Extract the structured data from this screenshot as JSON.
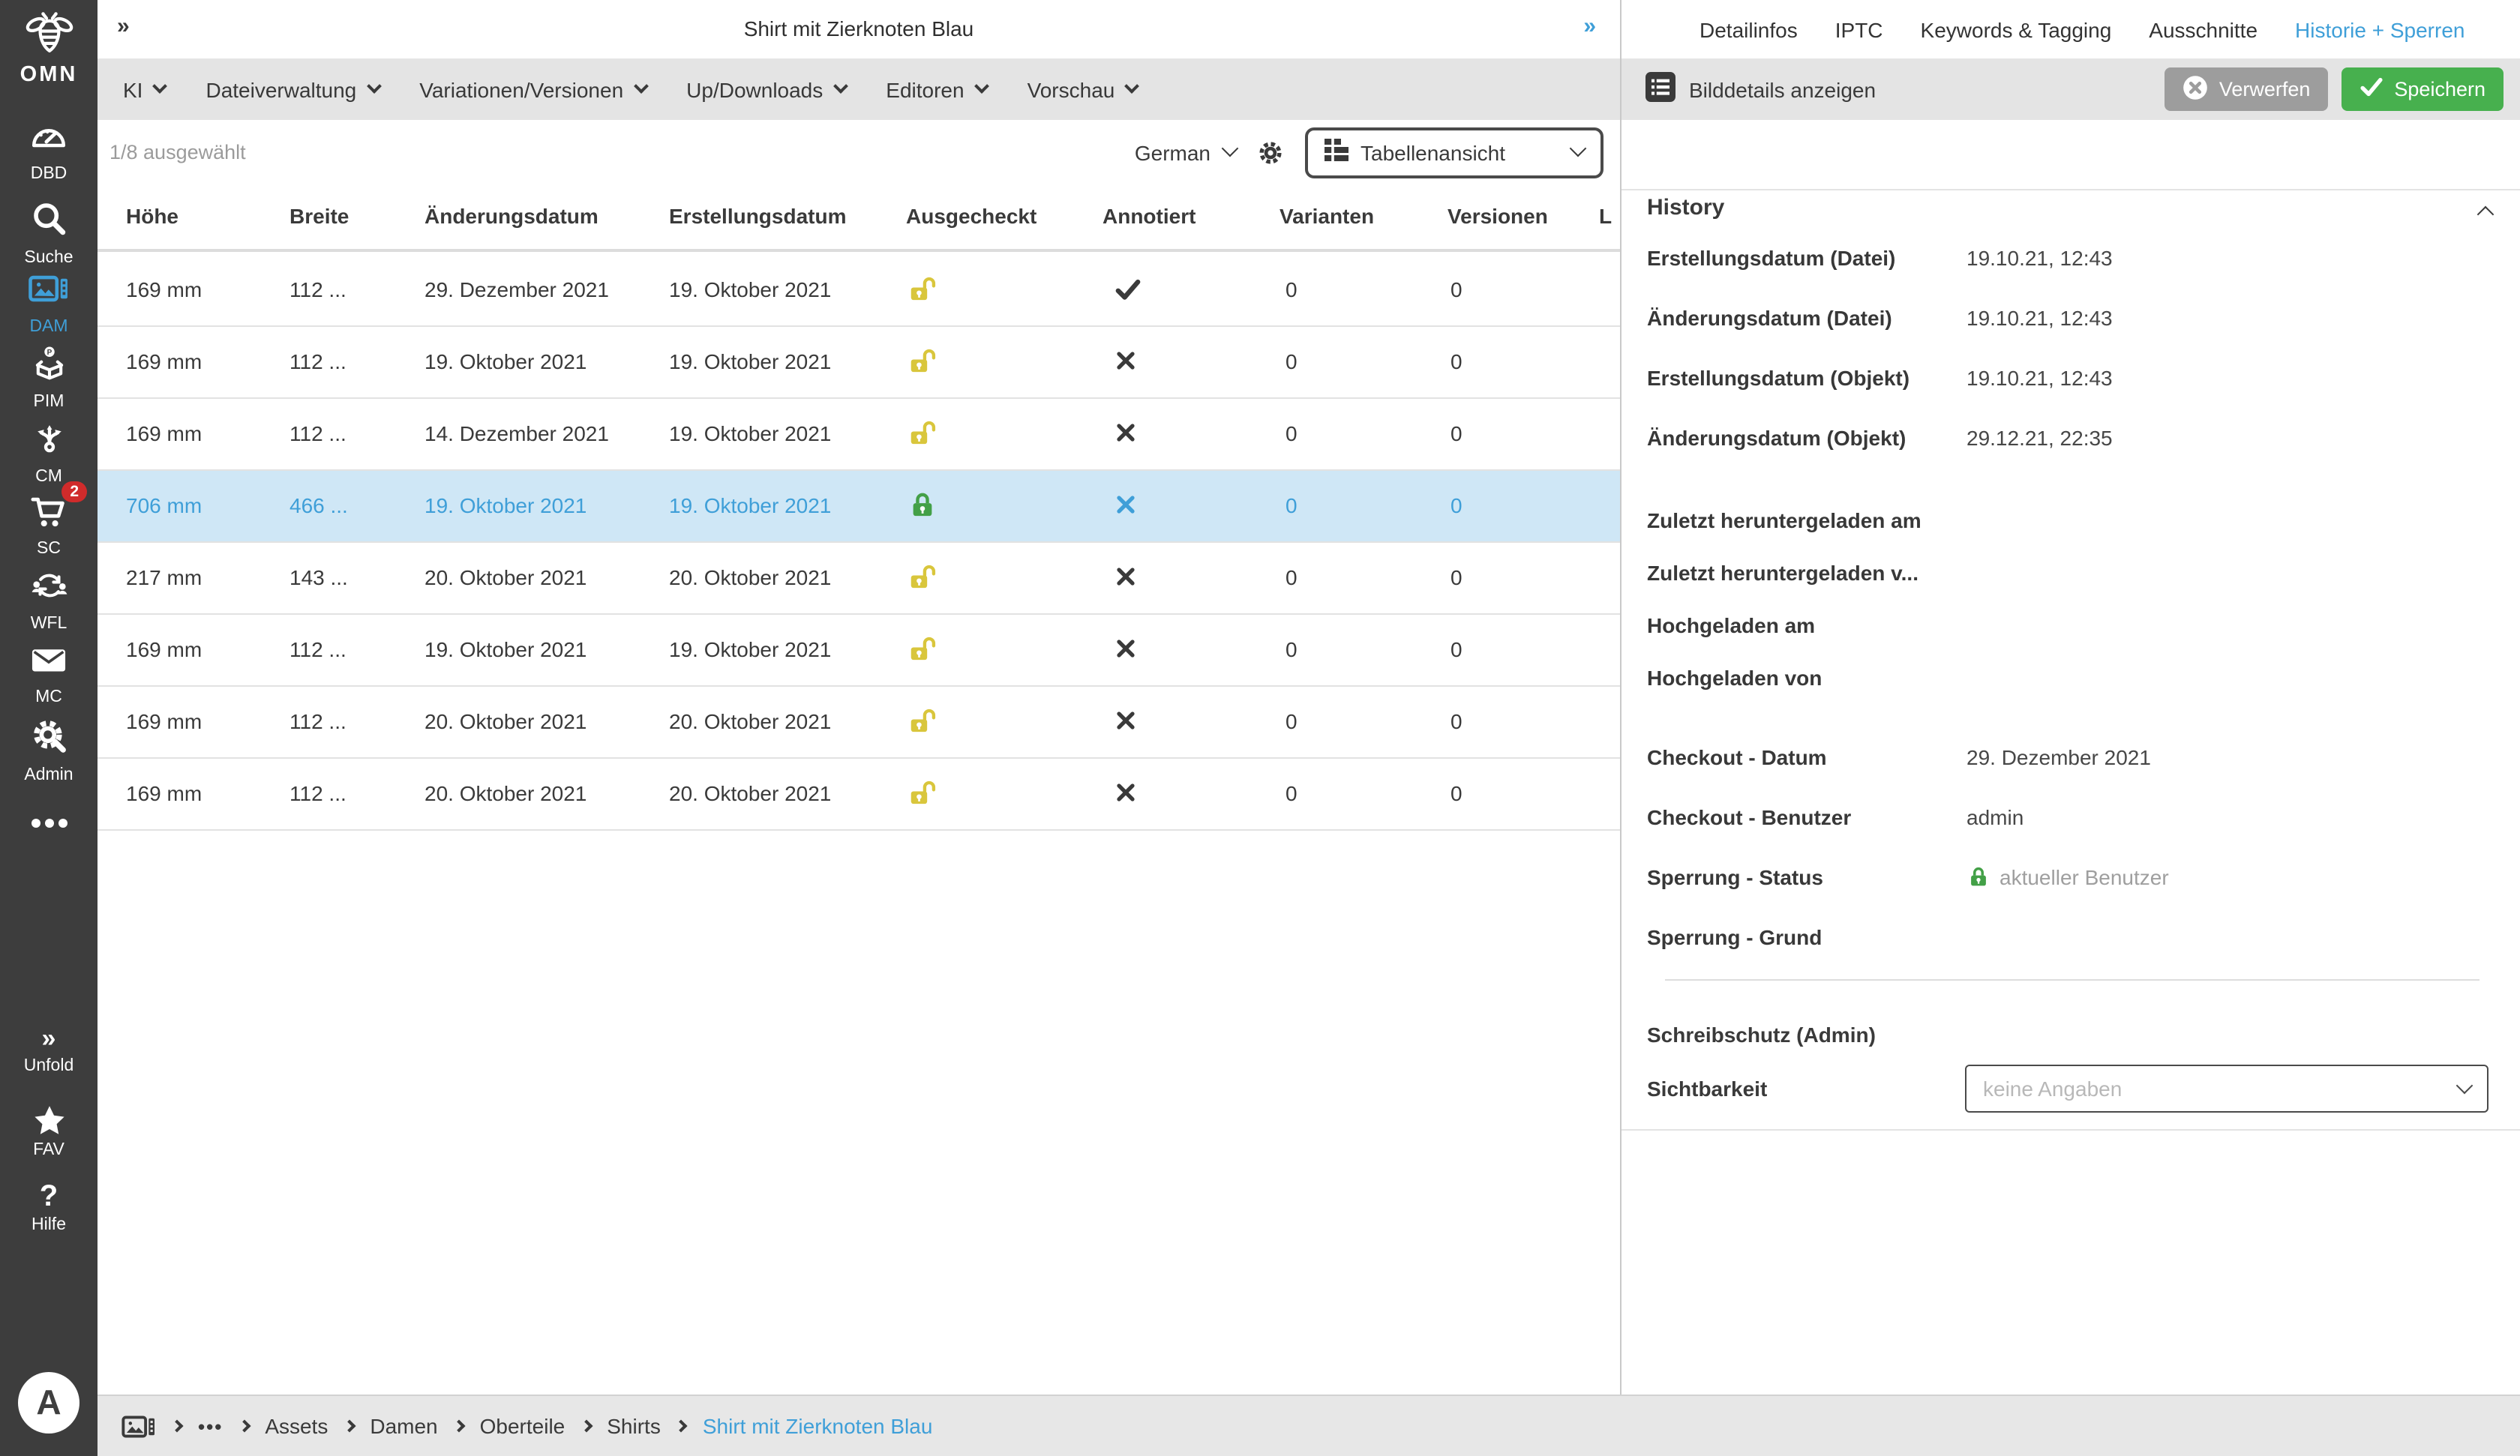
{
  "colors": {
    "accent_blue": "#3f9fd8",
    "sidebar_bg": "#3d3d3d",
    "bar_gray": "#e4e4e4",
    "selected_row_bg": "#cfe7f6",
    "lock_open_yellow": "#d9c63c",
    "lock_closed_green": "#43a047",
    "badge_red": "#d02b2b",
    "save_green": "#47b04e",
    "discard_gray": "#9d9d9d"
  },
  "icons": {
    "bee-icon": "bee logo line-art",
    "dashboard-gauge-icon": "speedometer",
    "search-icon": "magnifier",
    "image-film-icon": "picture with filmstrip",
    "product-box-icon": "person P over open box",
    "branch-arrows-icon": "three branching arrows",
    "shopping-cart-icon": "shopping cart",
    "workflow-users-icon": "two users with sync arrows",
    "mail-icon": "envelope",
    "admin-tools-icon": "gear with wrench",
    "ellipsis-icon": "three dots",
    "double-chevron-icon": "double chevron right",
    "star-icon": "star",
    "question-icon": "question mark",
    "gear-icon": "settings gear",
    "table-view-icon": "table grid",
    "list-icon": "dark square with list lines",
    "circle-x-icon": "white circle with x",
    "check-icon": "checkmark",
    "cross-icon": "x mark",
    "lock-open-icon": "open padlock",
    "lock-closed-icon": "closed padlock",
    "chevron-down-icon": "v",
    "chevron-up-icon": "^",
    "breadcrumb-chevron-icon": "right chevron"
  },
  "window": {
    "collapse_left": "»",
    "collapse_right": "»",
    "title": "Shirt mit Zierknoten Blau"
  },
  "sidebar": {
    "logo": {
      "icon": "bee-icon",
      "text": "OMN"
    },
    "items": [
      {
        "id": "dbd",
        "label": "DBD",
        "icon": "dashboard-gauge-icon",
        "active": false
      },
      {
        "id": "suche",
        "label": "Suche",
        "icon": "search-icon",
        "active": false
      },
      {
        "id": "dam",
        "label": "DAM",
        "icon": "image-film-icon",
        "active": true
      },
      {
        "id": "pim",
        "label": "PIM",
        "icon": "product-box-icon",
        "active": false
      },
      {
        "id": "cm",
        "label": "CM",
        "icon": "branch-arrows-icon",
        "active": false
      },
      {
        "id": "sc",
        "label": "SC",
        "icon": "shopping-cart-icon",
        "active": false,
        "badge": "2"
      },
      {
        "id": "wfl",
        "label": "WFL",
        "icon": "workflow-users-icon",
        "active": false
      },
      {
        "id": "mc",
        "label": "MC",
        "icon": "mail-icon",
        "active": false
      },
      {
        "id": "admin",
        "label": "Admin",
        "icon": "admin-tools-icon",
        "active": false
      }
    ],
    "footer": [
      {
        "id": "unfold",
        "label": "Unfold",
        "icon": "double-chevron-icon"
      },
      {
        "id": "fav",
        "label": "FAV",
        "icon": "star-icon"
      },
      {
        "id": "hilfe",
        "label": "Hilfe",
        "icon": "question-icon"
      }
    ],
    "avatar": "A"
  },
  "menubar": [
    "KI",
    "Dateiverwaltung",
    "Variationen/Versionen",
    "Up/Downloads",
    "Editoren",
    "Vorschau"
  ],
  "toolbar": {
    "selection": "1/8 ausgewählt",
    "language": "German",
    "view_mode": "Tabellenansicht"
  },
  "table": {
    "columns": [
      "Höhe",
      "Breite",
      "Änderungsdatum",
      "Erstellungsdatum",
      "Ausgecheckt",
      "Annotiert",
      "Varianten",
      "Versionen",
      "L"
    ],
    "rows": [
      {
        "hoehe": "169 mm",
        "breite": "112 ...",
        "aenderung": "29. Dezember 2021",
        "erstellung": "19. Oktober 2021",
        "ausgecheckt": "open",
        "annotiert": "check",
        "varianten": "0",
        "versionen": "0",
        "selected": false
      },
      {
        "hoehe": "169 mm",
        "breite": "112 ...",
        "aenderung": "19. Oktober 2021",
        "erstellung": "19. Oktober 2021",
        "ausgecheckt": "open",
        "annotiert": "cross",
        "varianten": "0",
        "versionen": "0",
        "selected": false
      },
      {
        "hoehe": "169 mm",
        "breite": "112 ...",
        "aenderung": "14. Dezember 2021",
        "erstellung": "19. Oktober 2021",
        "ausgecheckt": "open",
        "annotiert": "cross",
        "varianten": "0",
        "versionen": "0",
        "selected": false
      },
      {
        "hoehe": "706 mm",
        "breite": "466 ...",
        "aenderung": "19. Oktober 2021",
        "erstellung": "19. Oktober 2021",
        "ausgecheckt": "closed",
        "annotiert": "cross",
        "varianten": "0",
        "versionen": "0",
        "selected": true
      },
      {
        "hoehe": "217 mm",
        "breite": "143 ...",
        "aenderung": "20. Oktober 2021",
        "erstellung": "20. Oktober 2021",
        "ausgecheckt": "open",
        "annotiert": "cross",
        "varianten": "0",
        "versionen": "0",
        "selected": false
      },
      {
        "hoehe": "169 mm",
        "breite": "112 ...",
        "aenderung": "19. Oktober 2021",
        "erstellung": "19. Oktober 2021",
        "ausgecheckt": "open",
        "annotiert": "cross",
        "varianten": "0",
        "versionen": "0",
        "selected": false
      },
      {
        "hoehe": "169 mm",
        "breite": "112 ...",
        "aenderung": "20. Oktober 2021",
        "erstellung": "20. Oktober 2021",
        "ausgecheckt": "open",
        "annotiert": "cross",
        "varianten": "0",
        "versionen": "0",
        "selected": false
      },
      {
        "hoehe": "169 mm",
        "breite": "112 ...",
        "aenderung": "20. Oktober 2021",
        "erstellung": "20. Oktober 2021",
        "ausgecheckt": "open",
        "annotiert": "cross",
        "varianten": "0",
        "versionen": "0",
        "selected": false
      }
    ]
  },
  "panel": {
    "tabs": [
      {
        "label": "Detailinfos",
        "active": false
      },
      {
        "label": "IPTC",
        "active": false
      },
      {
        "label": "Keywords & Tagging",
        "active": false
      },
      {
        "label": "Ausschnitte",
        "active": false
      },
      {
        "label": "Historie + Sperren",
        "active": true
      }
    ],
    "show_details": "Bilddetails anzeigen",
    "discard": "Verwerfen",
    "save": "Speichern",
    "history": {
      "title": "History",
      "groups": [
        [
          {
            "label": "Erstellungsdatum (Datei)",
            "value": "19.10.21, 12:43"
          },
          {
            "label": "Änderungsdatum (Datei)",
            "value": "19.10.21, 12:43"
          },
          {
            "label": "Erstellungsdatum (Objekt)",
            "value": "19.10.21, 12:43"
          },
          {
            "label": "Änderungsdatum (Objekt)",
            "value": "29.12.21, 22:35"
          }
        ],
        [
          {
            "label": "Zuletzt heruntergeladen am",
            "value": ""
          },
          {
            "label": "Zuletzt heruntergeladen v...",
            "value": ""
          },
          {
            "label": "Hochgeladen am",
            "value": ""
          },
          {
            "label": "Hochgeladen von",
            "value": ""
          }
        ],
        [
          {
            "label": "Checkout - Datum",
            "value": "29. Dezember 2021"
          },
          {
            "label": "Checkout - Benutzer",
            "value": "admin"
          },
          {
            "label": "Sperrung - Status",
            "value": "aktueller Benutzer",
            "value_icon": "lock-closed-icon",
            "value_muted": true
          },
          {
            "label": "Sperrung - Grund",
            "value": ""
          }
        ]
      ],
      "write_protection": "Schreibschutz (Admin)",
      "visibility_label": "Sichtbarkeit",
      "visibility_placeholder": "keine Angaben"
    }
  },
  "breadcrumb": {
    "root_icon": "image-film-icon",
    "collapsed": "•••",
    "items": [
      "Assets",
      "Damen",
      "Oberteile",
      "Shirts"
    ],
    "current": "Shirt mit Zierknoten Blau"
  }
}
